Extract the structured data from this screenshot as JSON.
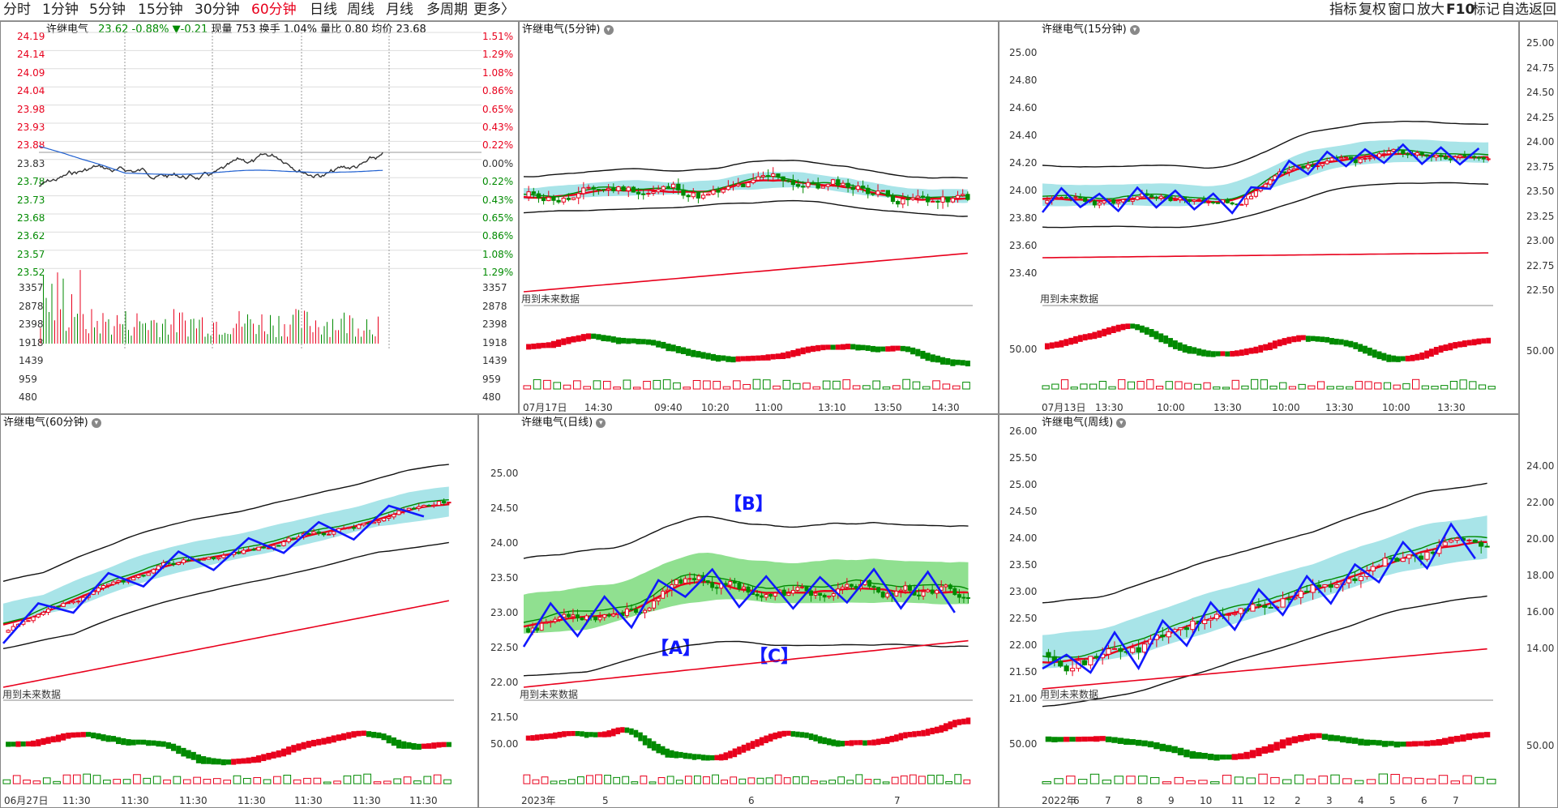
{
  "topbar": {
    "periods": [
      "分时",
      "1分钟",
      "5分钟",
      "15分钟",
      "30分钟",
      "60分钟",
      "日线",
      "周线",
      "月线",
      "多周期",
      "更多〉"
    ],
    "active_period": "60分钟",
    "right_tools": [
      "指标",
      "复权",
      "窗口",
      "放大",
      "F10",
      "标记",
      "自选",
      "返回"
    ]
  },
  "colors": {
    "up": "#e8001c",
    "down": "#008a00",
    "accent_blue": "#1018ff",
    "cloud": "#a8e4e8",
    "cloud_green": "#90e090"
  },
  "panels": {
    "intraday": {
      "title": "许继电气",
      "price": "23.62",
      "pct": "-0.88%",
      "chg": "▼-0.21",
      "vol_label": "现量",
      "vol": "753",
      "turnover_label": "换手",
      "turnover": "1.04%",
      "ratio_label": "量比",
      "ratio": "0.80",
      "avg_label": "均价",
      "avg": "23.68",
      "price_ticks": [
        "24.19",
        "24.14",
        "24.09",
        "24.04",
        "23.98",
        "23.93",
        "23.88",
        "23.83",
        "23.78",
        "23.73",
        "23.68",
        "23.62",
        "23.57",
        "23.52"
      ],
      "pct_ticks": [
        "1.51%",
        "1.29%",
        "1.08%",
        "0.86%",
        "0.65%",
        "0.43%",
        "0.22%",
        "0.00%",
        "0.22%",
        "0.43%",
        "0.65%",
        "0.86%",
        "1.08%",
        "1.29%"
      ],
      "vol_ticks": [
        "3357",
        "2878",
        "2398",
        "1918",
        "1439",
        "959",
        "480"
      ]
    },
    "m5": {
      "title": "许继电气(5分钟)",
      "note": "用到未来数据",
      "x_ticks": [
        "07月17日",
        "14:30",
        "09:40",
        "10:20",
        "11:00",
        "13:10",
        "13:50",
        "14:30"
      ]
    },
    "m15": {
      "title": "许继电气(15分钟)",
      "note": "用到未来数据",
      "y_ticks": [
        "25.00",
        "24.80",
        "24.60",
        "24.40",
        "24.20",
        "24.00",
        "23.80",
        "23.60",
        "23.40"
      ],
      "osc_tick": "50.00",
      "x_ticks": [
        "07月13日",
        "13:30",
        "10:00",
        "13:30",
        "10:00",
        "13:30",
        "10:00",
        "13:30"
      ]
    },
    "m60": {
      "title": "许继电气(60分钟)",
      "note": "用到未来数据",
      "x_ticks": [
        "06月27日",
        "11:30",
        "11:30",
        "11:30",
        "11:30",
        "11:30",
        "11:30",
        "11:30"
      ]
    },
    "daily": {
      "title": "许继电气(日线)",
      "note": "用到未来数据",
      "y_ticks": [
        "25.00",
        "24.50",
        "24.00",
        "23.50",
        "23.00",
        "22.50",
        "22.00",
        "21.50"
      ],
      "osc_tick": "50.00",
      "x_ticks": [
        "2023年",
        "5",
        "6",
        "7"
      ],
      "labels": [
        "【A】",
        "【B】",
        "【C】"
      ]
    },
    "weekly": {
      "title": "许继电气(周线)",
      "note": "用到未来数据",
      "y_ticks": [
        "26.00",
        "25.50",
        "25.00",
        "24.50",
        "24.00",
        "23.50",
        "23.00",
        "22.50",
        "22.00",
        "21.50",
        "21.00"
      ],
      "osc_tick": "50.00",
      "x_ticks": [
        "2022年",
        "6",
        "7",
        "8",
        "9",
        "10",
        "11",
        "12",
        "2",
        "3",
        "4",
        "5",
        "6",
        "7"
      ]
    },
    "right_axis": {
      "ticks": [
        "25.00",
        "24.75",
        "24.50",
        "24.25",
        "24.00",
        "23.75",
        "23.50",
        "23.25",
        "23.00",
        "22.75",
        "22.50"
      ],
      "osc_tick": "50.00",
      "lower_ticks": [
        "24.00",
        "22.00",
        "20.00",
        "18.00",
        "16.00",
        "14.00"
      ],
      "lower_osc_tick": "50.00"
    }
  }
}
